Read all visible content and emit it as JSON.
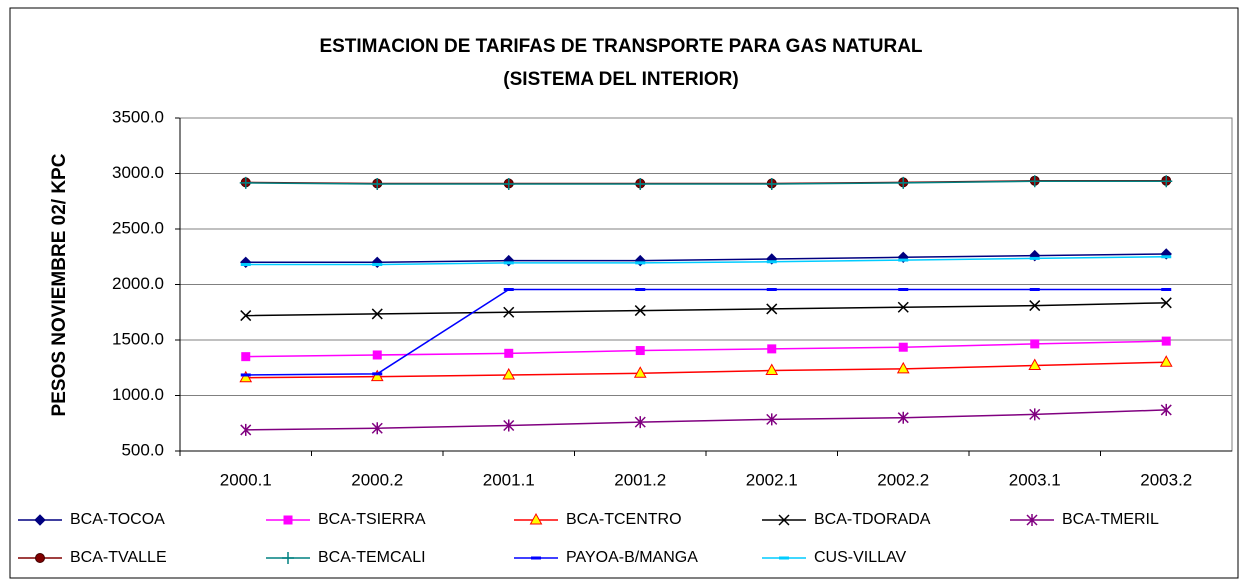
{
  "chart_data": {
    "type": "line",
    "title": "ESTIMACION DE TARIFAS DE TRANSPORTE PARA GAS NATURAL",
    "subtitle": "(SISTEMA DEL INTERIOR)",
    "y_label": "PESOS NOVIEMBRE 02/ KPC",
    "categories": [
      "2000.1",
      "2000.2",
      "2001.1",
      "2001.2",
      "2002.1",
      "2002.2",
      "2003.1",
      "2003.2"
    ],
    "ylim": [
      500,
      3500
    ],
    "yticks": [
      {
        "value": 500,
        "label": "500.0"
      },
      {
        "value": 1000,
        "label": "1000.0"
      },
      {
        "value": 1500,
        "label": "1500.0"
      },
      {
        "value": 2000,
        "label": "2000.0"
      },
      {
        "value": 2500,
        "label": "2500.0"
      },
      {
        "value": 3000,
        "label": "3000.0"
      },
      {
        "value": 3500,
        "label": "3500.0"
      }
    ],
    "grid": true,
    "series": [
      {
        "name": "BCA-TOCOA",
        "color": "#000080",
        "marker": "diamond",
        "values": [
          2200,
          2200,
          2215,
          2215,
          2230,
          2245,
          2260,
          2275
        ]
      },
      {
        "name": "BCA-TSIERRA",
        "color": "#ff00ff",
        "marker": "square",
        "values": [
          1350,
          1365,
          1380,
          1405,
          1420,
          1435,
          1465,
          1490
        ]
      },
      {
        "name": "BCA-TCENTRO",
        "color": "#ff0000",
        "marker": "triangle",
        "marker_fill": "#ffff00",
        "values": [
          1160,
          1170,
          1185,
          1200,
          1225,
          1240,
          1270,
          1300
        ]
      },
      {
        "name": "BCA-TDORADA",
        "color": "#000000",
        "marker": "x",
        "values": [
          1720,
          1735,
          1750,
          1765,
          1780,
          1795,
          1810,
          1835
        ]
      },
      {
        "name": "BCA-TMERIL",
        "color": "#800080",
        "marker": "star",
        "values": [
          690,
          705,
          730,
          760,
          785,
          800,
          830,
          870
        ]
      },
      {
        "name": "BCA-TVALLE",
        "color": "#800000",
        "marker": "circle",
        "values": [
          2920,
          2910,
          2910,
          2910,
          2910,
          2920,
          2935,
          2935
        ]
      },
      {
        "name": "BCA-TEMCALI",
        "color": "#008080",
        "marker": "plus",
        "values": [
          2915,
          2905,
          2905,
          2905,
          2905,
          2915,
          2930,
          2930
        ]
      },
      {
        "name": "PAYOA-B/MANGA",
        "color": "#0000ff",
        "marker": "dash",
        "values": [
          1185,
          1195,
          1955,
          1955,
          1955,
          1955,
          1955,
          1955
        ]
      },
      {
        "name": "CUS-VILLAV",
        "color": "#00ccff",
        "marker": "dash",
        "values": [
          2180,
          2180,
          2195,
          2195,
          2205,
          2220,
          2235,
          2250
        ]
      }
    ]
  }
}
